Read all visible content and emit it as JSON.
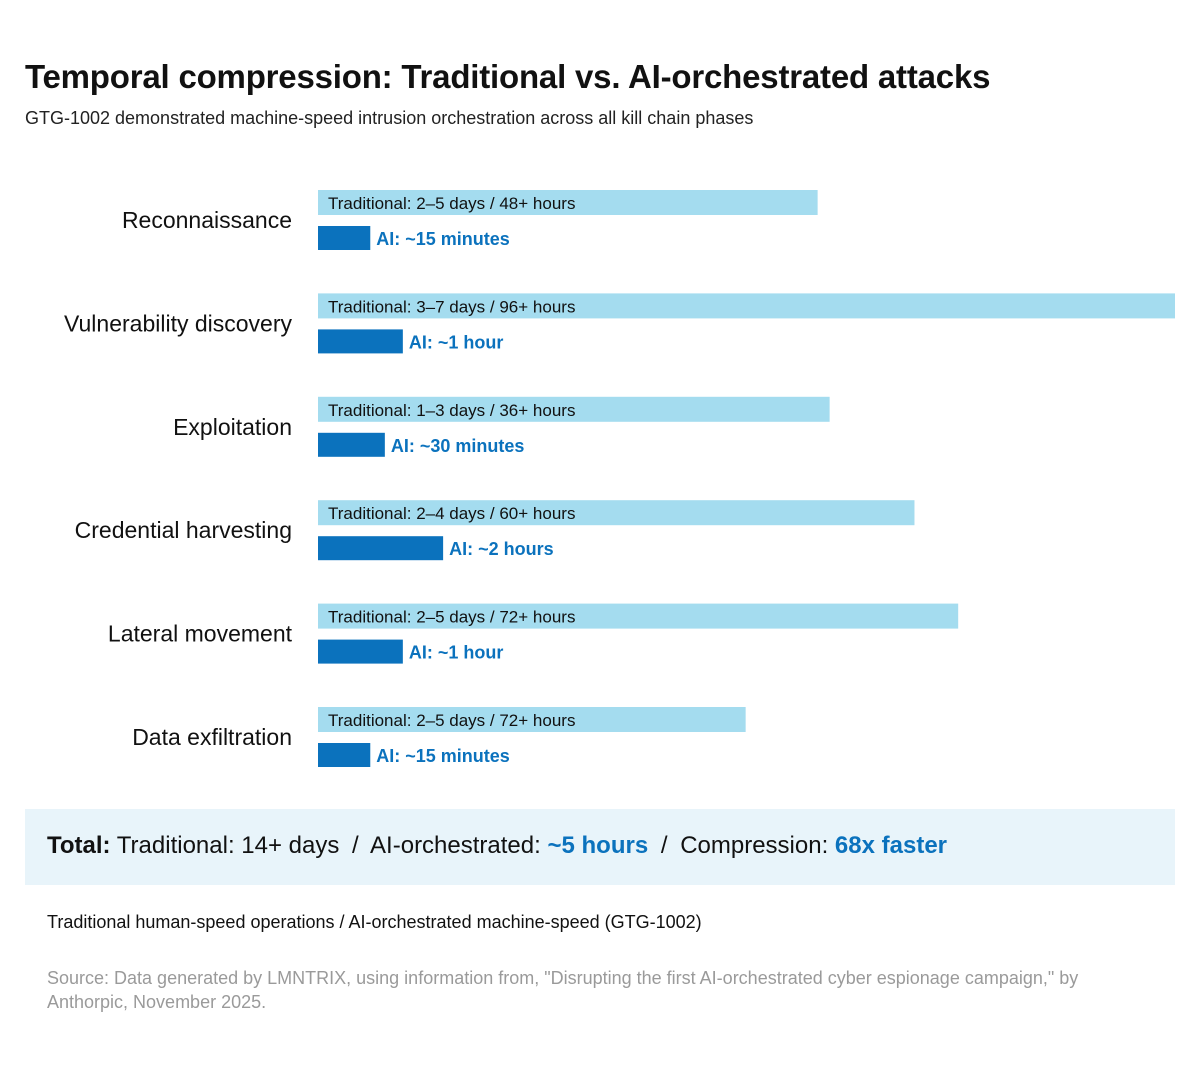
{
  "title": "Temporal compression: Traditional vs. AI-orchestrated attacks",
  "subtitle": "GTG-1002 demonstrated machine-speed intrusion orchestration across all kill chain phases",
  "colors": {
    "traditional": "#a4dcef",
    "ai": "#0b72bd",
    "ai_text": "#0b72bd",
    "summary_bg": "#e8f4fa",
    "source_text": "#9a9a9a"
  },
  "chart_data": {
    "type": "bar",
    "orientation": "horizontal",
    "categories": [
      "Reconnaissance",
      "Vulnerability discovery",
      "Exploitation",
      "Credential harvesting",
      "Lateral movement",
      "Data exfiltration"
    ],
    "series": [
      {
        "values": [
          48,
          96,
          36,
          60,
          72,
          72
        ],
        "labels": [
          "Traditional: 2–5 days / 48+ hours",
          "Traditional: 3–7 days / 96+ hours",
          "Traditional: 1–3 days / 36+ hours",
          "Traditional: 2–4 days / 60+ hours",
          "Traditional: 2–5 days / 72+ hours",
          "Traditional: 2–5 days / 72+ hours"
        ]
      },
      {
        "values": [
          0.25,
          1,
          0.5,
          2,
          1,
          0.25
        ],
        "labels": [
          "AI: ~15 minutes",
          "AI: ~1 hour",
          "AI: ~30 minutes",
          "AI: ~2 hours",
          "AI: ~1 hour",
          "AI: ~15 minutes"
        ]
      }
    ],
    "traditional_bar_fraction": [
      0.583,
      1.0,
      0.597,
      0.696,
      0.747,
      0.499
    ],
    "ai_bar_fraction": [
      0.061,
      0.099,
      0.078,
      0.146,
      0.099,
      0.061
    ],
    "legend": "none",
    "grid": false
  },
  "summary": {
    "label": "Total:",
    "traditional": "Traditional: 14+ days",
    "sep1": "/",
    "ai_prefix": "AI-orchestrated:",
    "ai_value": "~5 hours",
    "sep2": "/",
    "compression_prefix": "Compression:",
    "compression_value": "68x faster"
  },
  "legend_text": "Traditional human-speed operations  /  AI-orchestrated machine-speed (GTG-1002)",
  "source": "Source: Data generated by LMNTRIX, using information from, \"Disrupting the first AI-orchestrated cyber espionage campaign,\" by Anthorpic, November 2025."
}
